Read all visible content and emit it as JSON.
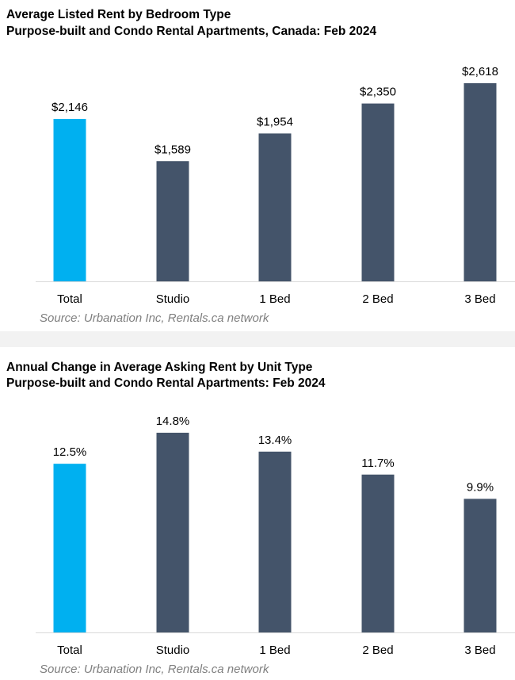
{
  "chart_data": [
    {
      "type": "bar",
      "title": "Average Listed Rent by Bedroom Type",
      "subtitle": "Purpose-built and Condo Rental Apartments, Canada: Feb 2024",
      "categories": [
        "Total",
        "Studio",
        "1 Bed",
        "2 Bed",
        "3 Bed"
      ],
      "values": [
        2146,
        1589,
        1954,
        2350,
        2618
      ],
      "data_labels": [
        "$2,146",
        "$1,589",
        "$1,954",
        "$2,350",
        "$2,618"
      ],
      "bar_colors": [
        "#00b0f0",
        "#44546a",
        "#44546a",
        "#44546a",
        "#44546a"
      ],
      "ylim": [
        0,
        2618
      ],
      "xlabel": "",
      "ylabel": "",
      "grid": false,
      "source": "Source: Urbanation Inc, Rentals.ca network"
    },
    {
      "type": "bar",
      "title": "Annual Change in Average Asking Rent by Unit Type",
      "subtitle": "Purpose-built and Condo Rental Apartments: Feb 2024",
      "categories": [
        "Total",
        "Studio",
        "1 Bed",
        "2 Bed",
        "3 Bed"
      ],
      "values": [
        12.5,
        14.8,
        13.4,
        11.7,
        9.9
      ],
      "data_labels": [
        "12.5%",
        "14.8%",
        "13.4%",
        "11.7%",
        "9.9%"
      ],
      "bar_colors": [
        "#00b0f0",
        "#44546a",
        "#44546a",
        "#44546a",
        "#44546a"
      ],
      "ylim": [
        0,
        14.8
      ],
      "xlabel": "",
      "ylabel": "",
      "grid": false,
      "source": "Source: Urbanation Inc, Rentals.ca network"
    }
  ]
}
